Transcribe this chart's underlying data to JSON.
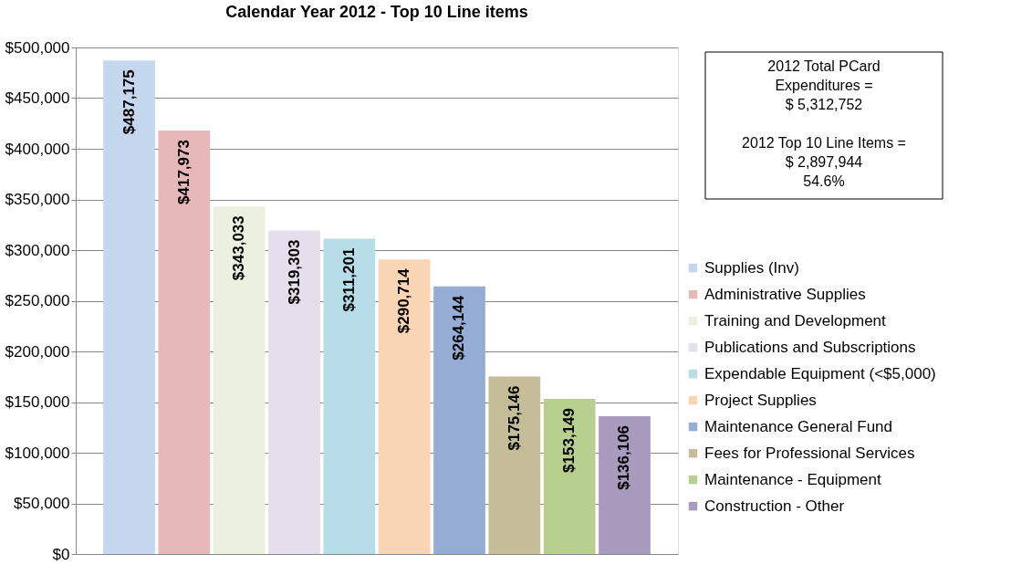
{
  "chart_data": {
    "type": "bar",
    "title": "Calendar Year 2012 - Top 10 Line items",
    "categories": [
      null,
      null,
      null,
      null,
      null,
      null,
      null,
      null,
      null,
      null
    ],
    "series": [
      {
        "name": "Supplies (Inv)",
        "color": "#c5d7ef",
        "values": [
          487175,
          null,
          null,
          null,
          null,
          null,
          null,
          null,
          null,
          null
        ],
        "value_labels": [
          "$487,175",
          null,
          null,
          null,
          null,
          null,
          null,
          null,
          null,
          null
        ]
      },
      {
        "name": "Administrative Supplies",
        "color": "#e6b8b7",
        "values": [
          null,
          417973,
          null,
          null,
          null,
          null,
          null,
          null,
          null,
          null
        ],
        "value_labels": [
          null,
          "$417,973",
          null,
          null,
          null,
          null,
          null,
          null,
          null,
          null
        ]
      },
      {
        "name": "Training and Development",
        "color": "#ebf1de",
        "values": [
          null,
          null,
          343033,
          null,
          null,
          null,
          null,
          null,
          null,
          null
        ],
        "value_labels": [
          null,
          null,
          "$343,033",
          null,
          null,
          null,
          null,
          null,
          null,
          null
        ]
      },
      {
        "name": "Publications and Subscriptions",
        "color": "#e4dfec",
        "values": [
          null,
          null,
          null,
          319303,
          null,
          null,
          null,
          null,
          null,
          null
        ],
        "value_labels": [
          null,
          null,
          null,
          "$319,303",
          null,
          null,
          null,
          null,
          null,
          null
        ]
      },
      {
        "name": "Expendable Equipment (<$5,000)",
        "color": "#b7dee8",
        "values": [
          null,
          null,
          null,
          null,
          311201,
          null,
          null,
          null,
          null,
          null
        ],
        "value_labels": [
          null,
          null,
          null,
          null,
          "$311,201",
          null,
          null,
          null,
          null,
          null
        ]
      },
      {
        "name": "Project Supplies",
        "color": "#fad5b4",
        "values": [
          null,
          null,
          null,
          null,
          null,
          290714,
          null,
          null,
          null,
          null
        ],
        "value_labels": [
          null,
          null,
          null,
          null,
          null,
          "$290,714",
          null,
          null,
          null,
          null
        ]
      },
      {
        "name": "Maintenance   General Fund",
        "color": "#95add4",
        "values": [
          null,
          null,
          null,
          null,
          null,
          null,
          264144,
          null,
          null,
          null
        ],
        "value_labels": [
          null,
          null,
          null,
          null,
          null,
          null,
          "$264,144",
          null,
          null,
          null
        ]
      },
      {
        "name": "Fees for Professional Services",
        "color": "#c4bd97",
        "values": [
          null,
          null,
          null,
          null,
          null,
          null,
          null,
          175146,
          null,
          null
        ],
        "value_labels": [
          null,
          null,
          null,
          null,
          null,
          null,
          null,
          "$175,146",
          null,
          null
        ]
      },
      {
        "name": "Maintenance - Equipment",
        "color": "#b8d08f",
        "values": [
          null,
          null,
          null,
          null,
          null,
          null,
          null,
          null,
          153149,
          null
        ],
        "value_labels": [
          null,
          null,
          null,
          null,
          null,
          null,
          null,
          null,
          "$153,149",
          null
        ]
      },
      {
        "name": "Construction - Other",
        "color": "#a99bbd",
        "values": [
          null,
          null,
          null,
          null,
          null,
          null,
          null,
          null,
          null,
          136106
        ],
        "value_labels": [
          null,
          null,
          null,
          null,
          null,
          null,
          null,
          null,
          null,
          "$136,106"
        ]
      }
    ],
    "ylim": [
      0,
      500000
    ],
    "yticks": [
      {
        "value": 0,
        "label": "$0"
      },
      {
        "value": 50000,
        "label": "$50,000"
      },
      {
        "value": 100000,
        "label": "$100,000"
      },
      {
        "value": 150000,
        "label": "$150,000"
      },
      {
        "value": 200000,
        "label": "$200,000"
      },
      {
        "value": 250000,
        "label": "$250,000"
      },
      {
        "value": 300000,
        "label": "$300,000"
      },
      {
        "value": 350000,
        "label": "$350,000"
      },
      {
        "value": 400000,
        "label": "$400,000"
      },
      {
        "value": 450000,
        "label": "$450,000"
      },
      {
        "value": 500000,
        "label": "$500,000"
      }
    ],
    "grid": "y",
    "legend": "right",
    "tick_labels": "y",
    "annotations": [
      "2012 Total PCard\nExpenditures =\n$ 5,312,752",
      "2012 Top 10 Line Items =\n$ 2,897,944\n54.6%"
    ]
  }
}
